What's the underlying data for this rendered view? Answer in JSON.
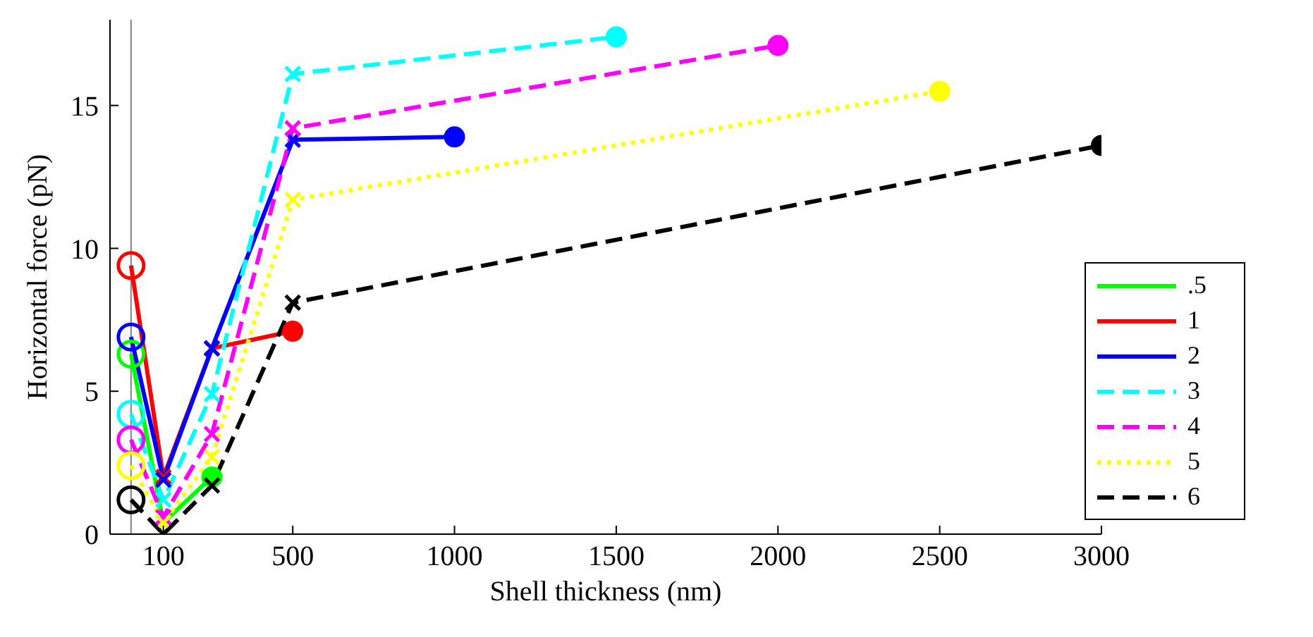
{
  "chart_data": {
    "type": "line",
    "xlabel": "Shell thickness (nm)",
    "ylabel": "Horizontal force (pN)",
    "xlim": [
      -65,
      3000
    ],
    "xticks": [
      100,
      500,
      1000,
      1500,
      2000,
      2500,
      3000
    ],
    "ylim": [
      0,
      18
    ],
    "yticks": [
      0,
      5,
      10,
      15
    ],
    "legend": "bottom right",
    "marker": "circle",
    "ref_lines": [
      {
        "axis": "x",
        "value": 0,
        "color": "#808080"
      }
    ],
    "series": [
      {
        "name": ".5",
        "color": "#00ff00",
        "line_style": "solid",
        "x": [
          0,
          100,
          250
        ],
        "values": [
          6.3,
          0.4,
          2.0
        ]
      },
      {
        "name": "1",
        "color": "#ff0000",
        "line_style": "solid",
        "x": [
          0,
          100,
          250,
          500
        ],
        "values": [
          9.4,
          2.0,
          6.5,
          7.1
        ]
      },
      {
        "name": "2",
        "color": "#0000ff",
        "line_style": "solid",
        "x": [
          0,
          100,
          250,
          500,
          1000
        ],
        "values": [
          6.9,
          1.9,
          6.5,
          13.8,
          13.9
        ]
      },
      {
        "name": "3",
        "color": "#00ffff",
        "line_style": "dashed",
        "x": [
          0,
          100,
          250,
          500,
          1500
        ],
        "values": [
          4.2,
          1.2,
          4.9,
          16.1,
          17.4
        ]
      },
      {
        "name": "4",
        "color": "#ff00ff",
        "line_style": "dashed",
        "x": [
          0,
          100,
          250,
          500,
          2000
        ],
        "values": [
          3.3,
          0.6,
          3.5,
          14.2,
          17.1
        ]
      },
      {
        "name": "5",
        "color": "#ffff00",
        "line_style": "dotted",
        "x": [
          0,
          100,
          250,
          500,
          2500
        ],
        "values": [
          2.4,
          0.4,
          2.7,
          11.7,
          15.5
        ]
      },
      {
        "name": "6",
        "color": "#000000",
        "line_style": "dashed",
        "x": [
          0,
          100,
          250,
          500,
          3000
        ],
        "values": [
          1.2,
          0,
          1.7,
          8.1,
          13.6
        ]
      }
    ]
  }
}
